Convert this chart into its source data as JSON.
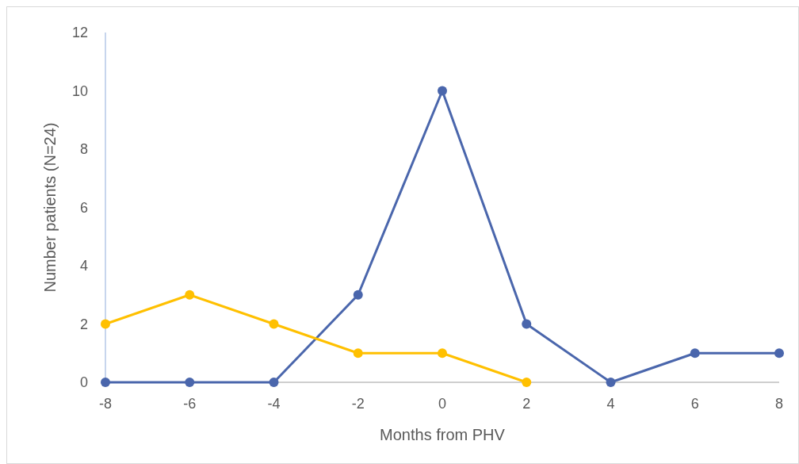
{
  "chart_data": {
    "type": "line",
    "xlabel": "Months from PHV",
    "ylabel": "Number patients (N=24)",
    "x": [
      -8,
      -6,
      -4,
      -2,
      0,
      2,
      4,
      6,
      8
    ],
    "series": [
      {
        "color": "#4a66ac",
        "values": [
          0,
          0,
          0,
          3,
          10,
          2,
          0,
          1,
          1
        ]
      },
      {
        "color": "#ffc000",
        "values": [
          2,
          3,
          2,
          1,
          1,
          0,
          null,
          null,
          null
        ]
      }
    ],
    "xlim": [
      -8,
      8
    ],
    "xticks": [
      -8,
      -6,
      -4,
      -2,
      0,
      2,
      4,
      6,
      8
    ],
    "ylim": [
      0,
      12
    ],
    "yticks": [
      0,
      2,
      4,
      6,
      8,
      10,
      12
    ],
    "grid": false,
    "marker": "circle",
    "line_style": "solid"
  }
}
